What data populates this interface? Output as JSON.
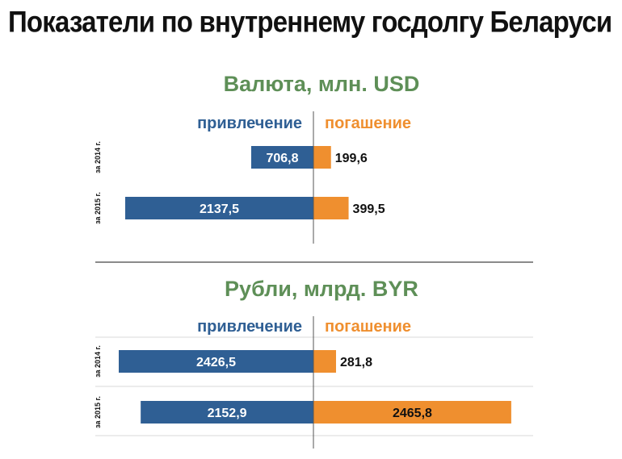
{
  "page_title": "Показатели по внутреннему госдолгу Беларуси",
  "colors": {
    "borrowing": "#2f5f94",
    "repayment": "#ef8f2f",
    "panel_title": "#5e8f57",
    "axis": "#555555",
    "divider": "#444444",
    "gridline": "#d9d9d9"
  },
  "chart_data": [
    {
      "type": "bar",
      "orientation": "horizontal-diverging",
      "title": "Валюта, млн. USD",
      "categories": [
        "за 2014 г.",
        "за 2015 г."
      ],
      "series": [
        {
          "name": "привлечение",
          "side": "left",
          "values": [
            706.8,
            2137.5
          ],
          "labels": [
            "706,8",
            "2137,5"
          ]
        },
        {
          "name": "погашение",
          "side": "right",
          "values": [
            199.6,
            399.5
          ],
          "labels": [
            "199,6",
            "399,5"
          ]
        }
      ],
      "xlim": [
        -2400,
        2600
      ],
      "grid": false,
      "legend": "top-center"
    },
    {
      "type": "bar",
      "orientation": "horizontal-diverging",
      "title": "Рубли, млрд. BYR",
      "categories": [
        "за 2014 г.",
        "за 2015 г."
      ],
      "series": [
        {
          "name": "привлечение",
          "side": "left",
          "values": [
            2426.5,
            2152.9
          ],
          "labels": [
            "2426,5",
            "2152,9"
          ]
        },
        {
          "name": "погашение",
          "side": "right",
          "values": [
            281.8,
            2465.8
          ],
          "labels": [
            "281,8",
            "2465,8"
          ]
        }
      ],
      "xlim": [
        -2600,
        2600
      ],
      "grid": true,
      "legend": "top-center"
    }
  ]
}
